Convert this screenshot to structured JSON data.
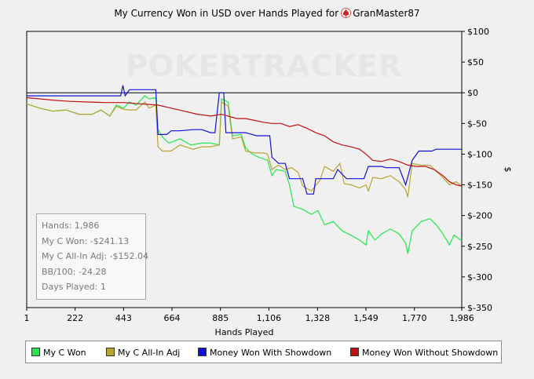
{
  "chart_data": {
    "type": "line",
    "title_prefix": "My Currency Won in USD over Hands Played for",
    "title_player": "GranMaster87",
    "xlabel": "Hands Played",
    "ylabel": "$",
    "xlim": [
      1,
      1986
    ],
    "ylim": [
      -350,
      100
    ],
    "x_ticks": [
      1,
      222,
      443,
      664,
      885,
      1106,
      1328,
      1549,
      1770,
      1986
    ],
    "x_tick_labels": [
      "1",
      "222",
      "443",
      "664",
      "885",
      "1,106",
      "1,328",
      "1,549",
      "1,770",
      "1,986"
    ],
    "y_ticks": [
      100,
      50,
      0,
      -50,
      -100,
      -150,
      -200,
      -250,
      -300,
      -350
    ],
    "y_tick_labels": [
      "$100",
      "$50",
      "$0",
      "$-50",
      "$-100",
      "$-150",
      "$-200",
      "$-250",
      "$-300",
      "$-350"
    ],
    "watermark": "POKERTRACKER",
    "series": [
      {
        "name": "My C Won",
        "color": "#22e84a",
        "points": [
          [
            1,
            -18
          ],
          [
            60,
            -25
          ],
          [
            120,
            -30
          ],
          [
            180,
            -28
          ],
          [
            240,
            -35
          ],
          [
            300,
            -35
          ],
          [
            340,
            -28
          ],
          [
            380,
            -38
          ],
          [
            410,
            -20
          ],
          [
            443,
            -25
          ],
          [
            470,
            -15
          ],
          [
            500,
            -20
          ],
          [
            540,
            -5
          ],
          [
            560,
            -10
          ],
          [
            590,
            -8
          ],
          [
            600,
            -60
          ],
          [
            620,
            -72
          ],
          [
            650,
            -82
          ],
          [
            700,
            -75
          ],
          [
            750,
            -85
          ],
          [
            800,
            -82
          ],
          [
            840,
            -82
          ],
          [
            880,
            -85
          ],
          [
            890,
            -10
          ],
          [
            920,
            -15
          ],
          [
            940,
            -70
          ],
          [
            980,
            -68
          ],
          [
            1000,
            -90
          ],
          [
            1030,
            -100
          ],
          [
            1060,
            -105
          ],
          [
            1100,
            -110
          ],
          [
            1120,
            -135
          ],
          [
            1140,
            -125
          ],
          [
            1180,
            -128
          ],
          [
            1200,
            -150
          ],
          [
            1220,
            -185
          ],
          [
            1260,
            -190
          ],
          [
            1300,
            -198
          ],
          [
            1330,
            -192
          ],
          [
            1360,
            -215
          ],
          [
            1400,
            -210
          ],
          [
            1440,
            -225
          ],
          [
            1480,
            -232
          ],
          [
            1520,
            -240
          ],
          [
            1549,
            -248
          ],
          [
            1560,
            -225
          ],
          [
            1590,
            -240
          ],
          [
            1620,
            -230
          ],
          [
            1660,
            -222
          ],
          [
            1700,
            -230
          ],
          [
            1730,
            -245
          ],
          [
            1740,
            -262
          ],
          [
            1760,
            -225
          ],
          [
            1800,
            -210
          ],
          [
            1840,
            -205
          ],
          [
            1870,
            -215
          ],
          [
            1900,
            -230
          ],
          [
            1930,
            -248
          ],
          [
            1950,
            -232
          ],
          [
            1986,
            -241
          ]
        ]
      },
      {
        "name": "My C All-In Adj",
        "color": "#b8a532",
        "points": [
          [
            1,
            -18
          ],
          [
            60,
            -25
          ],
          [
            120,
            -30
          ],
          [
            180,
            -28
          ],
          [
            240,
            -35
          ],
          [
            300,
            -35
          ],
          [
            340,
            -28
          ],
          [
            380,
            -38
          ],
          [
            410,
            -22
          ],
          [
            443,
            -27
          ],
          [
            470,
            -28
          ],
          [
            500,
            -28
          ],
          [
            540,
            -15
          ],
          [
            560,
            -25
          ],
          [
            590,
            -20
          ],
          [
            600,
            -88
          ],
          [
            620,
            -95
          ],
          [
            660,
            -95
          ],
          [
            700,
            -85
          ],
          [
            760,
            -92
          ],
          [
            800,
            -88
          ],
          [
            840,
            -88
          ],
          [
            880,
            -85
          ],
          [
            890,
            -15
          ],
          [
            920,
            -22
          ],
          [
            940,
            -75
          ],
          [
            980,
            -72
          ],
          [
            1000,
            -95
          ],
          [
            1040,
            -98
          ],
          [
            1080,
            -98
          ],
          [
            1100,
            -100
          ],
          [
            1120,
            -125
          ],
          [
            1150,
            -118
          ],
          [
            1180,
            -125
          ],
          [
            1210,
            -122
          ],
          [
            1240,
            -130
          ],
          [
            1260,
            -152
          ],
          [
            1300,
            -160
          ],
          [
            1340,
            -142
          ],
          [
            1360,
            -120
          ],
          [
            1400,
            -128
          ],
          [
            1430,
            -115
          ],
          [
            1450,
            -148
          ],
          [
            1480,
            -150
          ],
          [
            1520,
            -155
          ],
          [
            1549,
            -150
          ],
          [
            1560,
            -160
          ],
          [
            1580,
            -138
          ],
          [
            1620,
            -140
          ],
          [
            1660,
            -135
          ],
          [
            1700,
            -145
          ],
          [
            1730,
            -158
          ],
          [
            1740,
            -170
          ],
          [
            1760,
            -115
          ],
          [
            1800,
            -118
          ],
          [
            1840,
            -118
          ],
          [
            1870,
            -128
          ],
          [
            1900,
            -138
          ],
          [
            1930,
            -150
          ],
          [
            1960,
            -145
          ],
          [
            1986,
            -152
          ]
        ]
      },
      {
        "name": "Money Won With Showdown",
        "color": "#1010dd",
        "points": [
          [
            1,
            -5
          ],
          [
            100,
            -5
          ],
          [
            300,
            -5
          ],
          [
            430,
            -5
          ],
          [
            440,
            12
          ],
          [
            450,
            -5
          ],
          [
            470,
            5
          ],
          [
            520,
            5
          ],
          [
            590,
            5
          ],
          [
            600,
            -68
          ],
          [
            640,
            -68
          ],
          [
            660,
            -62
          ],
          [
            700,
            -62
          ],
          [
            760,
            -60
          ],
          [
            800,
            -60
          ],
          [
            840,
            -65
          ],
          [
            860,
            -65
          ],
          [
            880,
            0
          ],
          [
            900,
            0
          ],
          [
            910,
            -65
          ],
          [
            960,
            -65
          ],
          [
            1000,
            -65
          ],
          [
            1050,
            -70
          ],
          [
            1110,
            -70
          ],
          [
            1120,
            -105
          ],
          [
            1150,
            -115
          ],
          [
            1180,
            -115
          ],
          [
            1200,
            -140
          ],
          [
            1260,
            -140
          ],
          [
            1280,
            -165
          ],
          [
            1310,
            -165
          ],
          [
            1320,
            -140
          ],
          [
            1400,
            -140
          ],
          [
            1420,
            -125
          ],
          [
            1460,
            -140
          ],
          [
            1540,
            -140
          ],
          [
            1560,
            -120
          ],
          [
            1620,
            -120
          ],
          [
            1640,
            -122
          ],
          [
            1700,
            -122
          ],
          [
            1730,
            -150
          ],
          [
            1760,
            -110
          ],
          [
            1790,
            -95
          ],
          [
            1850,
            -95
          ],
          [
            1870,
            -92
          ],
          [
            1986,
            -92
          ]
        ]
      },
      {
        "name": "Money Won Without Showdown",
        "color": "#c01010",
        "points": [
          [
            1,
            -8
          ],
          [
            60,
            -10
          ],
          [
            120,
            -12
          ],
          [
            200,
            -14
          ],
          [
            280,
            -15
          ],
          [
            360,
            -16
          ],
          [
            443,
            -16
          ],
          [
            520,
            -18
          ],
          [
            600,
            -20
          ],
          [
            660,
            -25
          ],
          [
            720,
            -30
          ],
          [
            780,
            -35
          ],
          [
            840,
            -38
          ],
          [
            890,
            -35
          ],
          [
            920,
            -38
          ],
          [
            960,
            -42
          ],
          [
            1000,
            -42
          ],
          [
            1040,
            -45
          ],
          [
            1080,
            -48
          ],
          [
            1120,
            -50
          ],
          [
            1160,
            -50
          ],
          [
            1200,
            -55
          ],
          [
            1240,
            -52
          ],
          [
            1280,
            -58
          ],
          [
            1320,
            -65
          ],
          [
            1360,
            -70
          ],
          [
            1400,
            -80
          ],
          [
            1440,
            -85
          ],
          [
            1480,
            -88
          ],
          [
            1520,
            -92
          ],
          [
            1549,
            -100
          ],
          [
            1580,
            -110
          ],
          [
            1620,
            -112
          ],
          [
            1660,
            -108
          ],
          [
            1700,
            -112
          ],
          [
            1740,
            -118
          ],
          [
            1780,
            -120
          ],
          [
            1820,
            -120
          ],
          [
            1860,
            -125
          ],
          [
            1900,
            -135
          ],
          [
            1930,
            -145
          ],
          [
            1960,
            -150
          ],
          [
            1986,
            -152
          ]
        ]
      }
    ]
  },
  "stats": {
    "hands": "Hands: 1,986",
    "won": "My C Won: -$241.13",
    "allin": "My C All-In Adj: -$152.04",
    "bb100": "BB/100: -24.28",
    "days": "Days Played: 1"
  },
  "legend": {
    "items": [
      "My C Won",
      "My C All-In Adj",
      "Money Won With Showdown",
      "Money Won Without Showdown"
    ]
  }
}
